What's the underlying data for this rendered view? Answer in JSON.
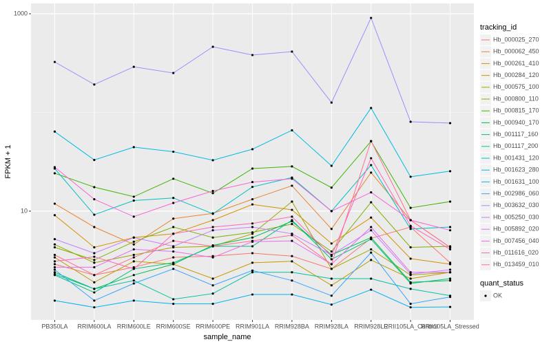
{
  "chart_data": {
    "type": "line",
    "log_y": true,
    "grid": true,
    "x_label": "sample_name",
    "y_label": "FPKM + 1",
    "legend_title": "tracking_id",
    "point_legend_title": "quant_status",
    "point_legend_label": "OK",
    "point_color": "#000000",
    "categories": [
      "PB350LA",
      "RRIM600LA",
      "RRIM600LE",
      "RRIM600SE",
      "RRIM600PE",
      "RRIM901LA",
      "RRIM928BA",
      "RRIM928LA",
      "RRIM928LE",
      "RRII105LA_Control",
      "RRII105LA_Stressed"
    ],
    "ylim": [
      0.79,
      1273
    ],
    "yticks": [
      10,
      1000
    ],
    "y_minor_gridlines": [
      100
    ],
    "series": [
      {
        "name": "Hb_000025_270",
        "color": "#F8766D",
        "values": [
          2.9,
          2.25,
          2.7,
          3.4,
          3.5,
          3.75,
          3.5,
          2.6,
          5.3,
          6.9,
          3.0
        ]
      },
      {
        "name": "Hb_000062_450",
        "color": "#EA8331",
        "values": [
          11.9,
          6.9,
          4.6,
          8.4,
          9.5,
          13.2,
          18.1,
          6.6,
          24.6,
          8.1,
          4.3
        ]
      },
      {
        "name": "Hb_000261_410",
        "color": "#D89000",
        "values": [
          9.1,
          4.3,
          5.4,
          5.9,
          8.1,
          11.7,
          10.3,
          4.7,
          8.6,
          3.3,
          2.9
        ]
      },
      {
        "name": "Hb_000284_120",
        "color": "#C09B00",
        "values": [
          3.4,
          1.9,
          3.1,
          2.9,
          2.07,
          3.0,
          3.1,
          1.77,
          3.2,
          2.07,
          2.4
        ]
      },
      {
        "name": "Hb_000575_100",
        "color": "#A3A500",
        "values": [
          4.6,
          3.0,
          3.6,
          4.3,
          4.4,
          5.9,
          12.5,
          2.6,
          4.1,
          2.25,
          2.4
        ]
      },
      {
        "name": "Hb_000800_110",
        "color": "#7CAE00",
        "values": [
          4.3,
          3.2,
          4.9,
          6.9,
          5.4,
          6.1,
          7.4,
          3.9,
          12.3,
          4.3,
          4.4
        ]
      },
      {
        "name": "Hb_000815_170",
        "color": "#39B600",
        "values": [
          24.2,
          17.5,
          14.0,
          21.3,
          15.2,
          27.0,
          28.4,
          17.3,
          51.0,
          10.8,
          12.5
        ]
      },
      {
        "name": "Hb_000940_170",
        "color": "#00BB4E",
        "values": [
          2.4,
          1.63,
          2.25,
          2.9,
          4.5,
          5.4,
          7.9,
          3.6,
          5.4,
          1.9,
          1.98
        ]
      },
      {
        "name": "Hb_001117_160",
        "color": "#00BF7D",
        "values": [
          2.25,
          1.5,
          2.6,
          3.0,
          4.4,
          4.4,
          8.1,
          3.25,
          5.2,
          1.85,
          2.07
        ]
      },
      {
        "name": "Hb_001117_200",
        "color": "#00C1A3",
        "values": [
          2.3,
          1.63,
          1.98,
          1.28,
          1.46,
          2.4,
          2.4,
          2.07,
          2.07,
          1.63,
          1.39
        ]
      },
      {
        "name": "Hb_001431_120",
        "color": "#00BFC4",
        "values": [
          27.0,
          9.2,
          12.8,
          13.6,
          9.4,
          17.6,
          21.9,
          10.0,
          29.3,
          6.6,
          6.9
        ]
      },
      {
        "name": "Hb_001623_280",
        "color": "#00BAE0",
        "values": [
          64,
          33,
          44.5,
          40,
          32.8,
          42.4,
          66,
          28.8,
          111,
          22.3,
          25.4
        ]
      },
      {
        "name": "Hb_001631_100",
        "color": "#00B0F6",
        "values": [
          1.24,
          1.06,
          1.24,
          1.15,
          1.15,
          1.43,
          1.43,
          1.13,
          1.6,
          1.06,
          1.07
        ]
      },
      {
        "name": "Hb_002986_060",
        "color": "#35A2FF",
        "values": [
          2.55,
          1.24,
          1.85,
          2.6,
          1.77,
          2.5,
          1.98,
          1.39,
          3.8,
          1.15,
          1.35
        ]
      },
      {
        "name": "Hb_003632_030",
        "color": "#9590FF",
        "values": [
          325,
          192,
          290,
          251,
          463,
          382,
          414,
          126,
          908,
          80.5,
          78
        ]
      },
      {
        "name": "Hb_005250_030",
        "color": "#C77CFF",
        "values": [
          5.2,
          3.75,
          5.4,
          4.4,
          6.4,
          6.9,
          5.9,
          3.6,
          6.4,
          2.3,
          2.55
        ]
      },
      {
        "name": "Hb_005892_020",
        "color": "#E76BF3",
        "values": [
          2.7,
          2.7,
          4.1,
          3.9,
          3.4,
          4.9,
          5.0,
          2.9,
          6.9,
          2.4,
          2.4
        ]
      },
      {
        "name": "Hb_007456_040",
        "color": "#FA62DB",
        "values": [
          27.9,
          13.2,
          8.8,
          12.1,
          16.0,
          19.7,
          21.3,
          10.0,
          15.5,
          8.1,
          6.4
        ]
      },
      {
        "name": "Hb_011616_020",
        "color": "#FF62BC",
        "values": [
          3.1,
          3.45,
          2.6,
          5.9,
          6.9,
          7.5,
          8.8,
          3.5,
          34.4,
          7.1,
          4.1
        ]
      },
      {
        "name": "Hb_013459_010",
        "color": "#FF6C91",
        "values": [
          3.6,
          2.25,
          3.4,
          5.0,
          4.4,
          5.0,
          5.7,
          2.9,
          51.4,
          8.1,
          4.3
        ]
      }
    ]
  }
}
